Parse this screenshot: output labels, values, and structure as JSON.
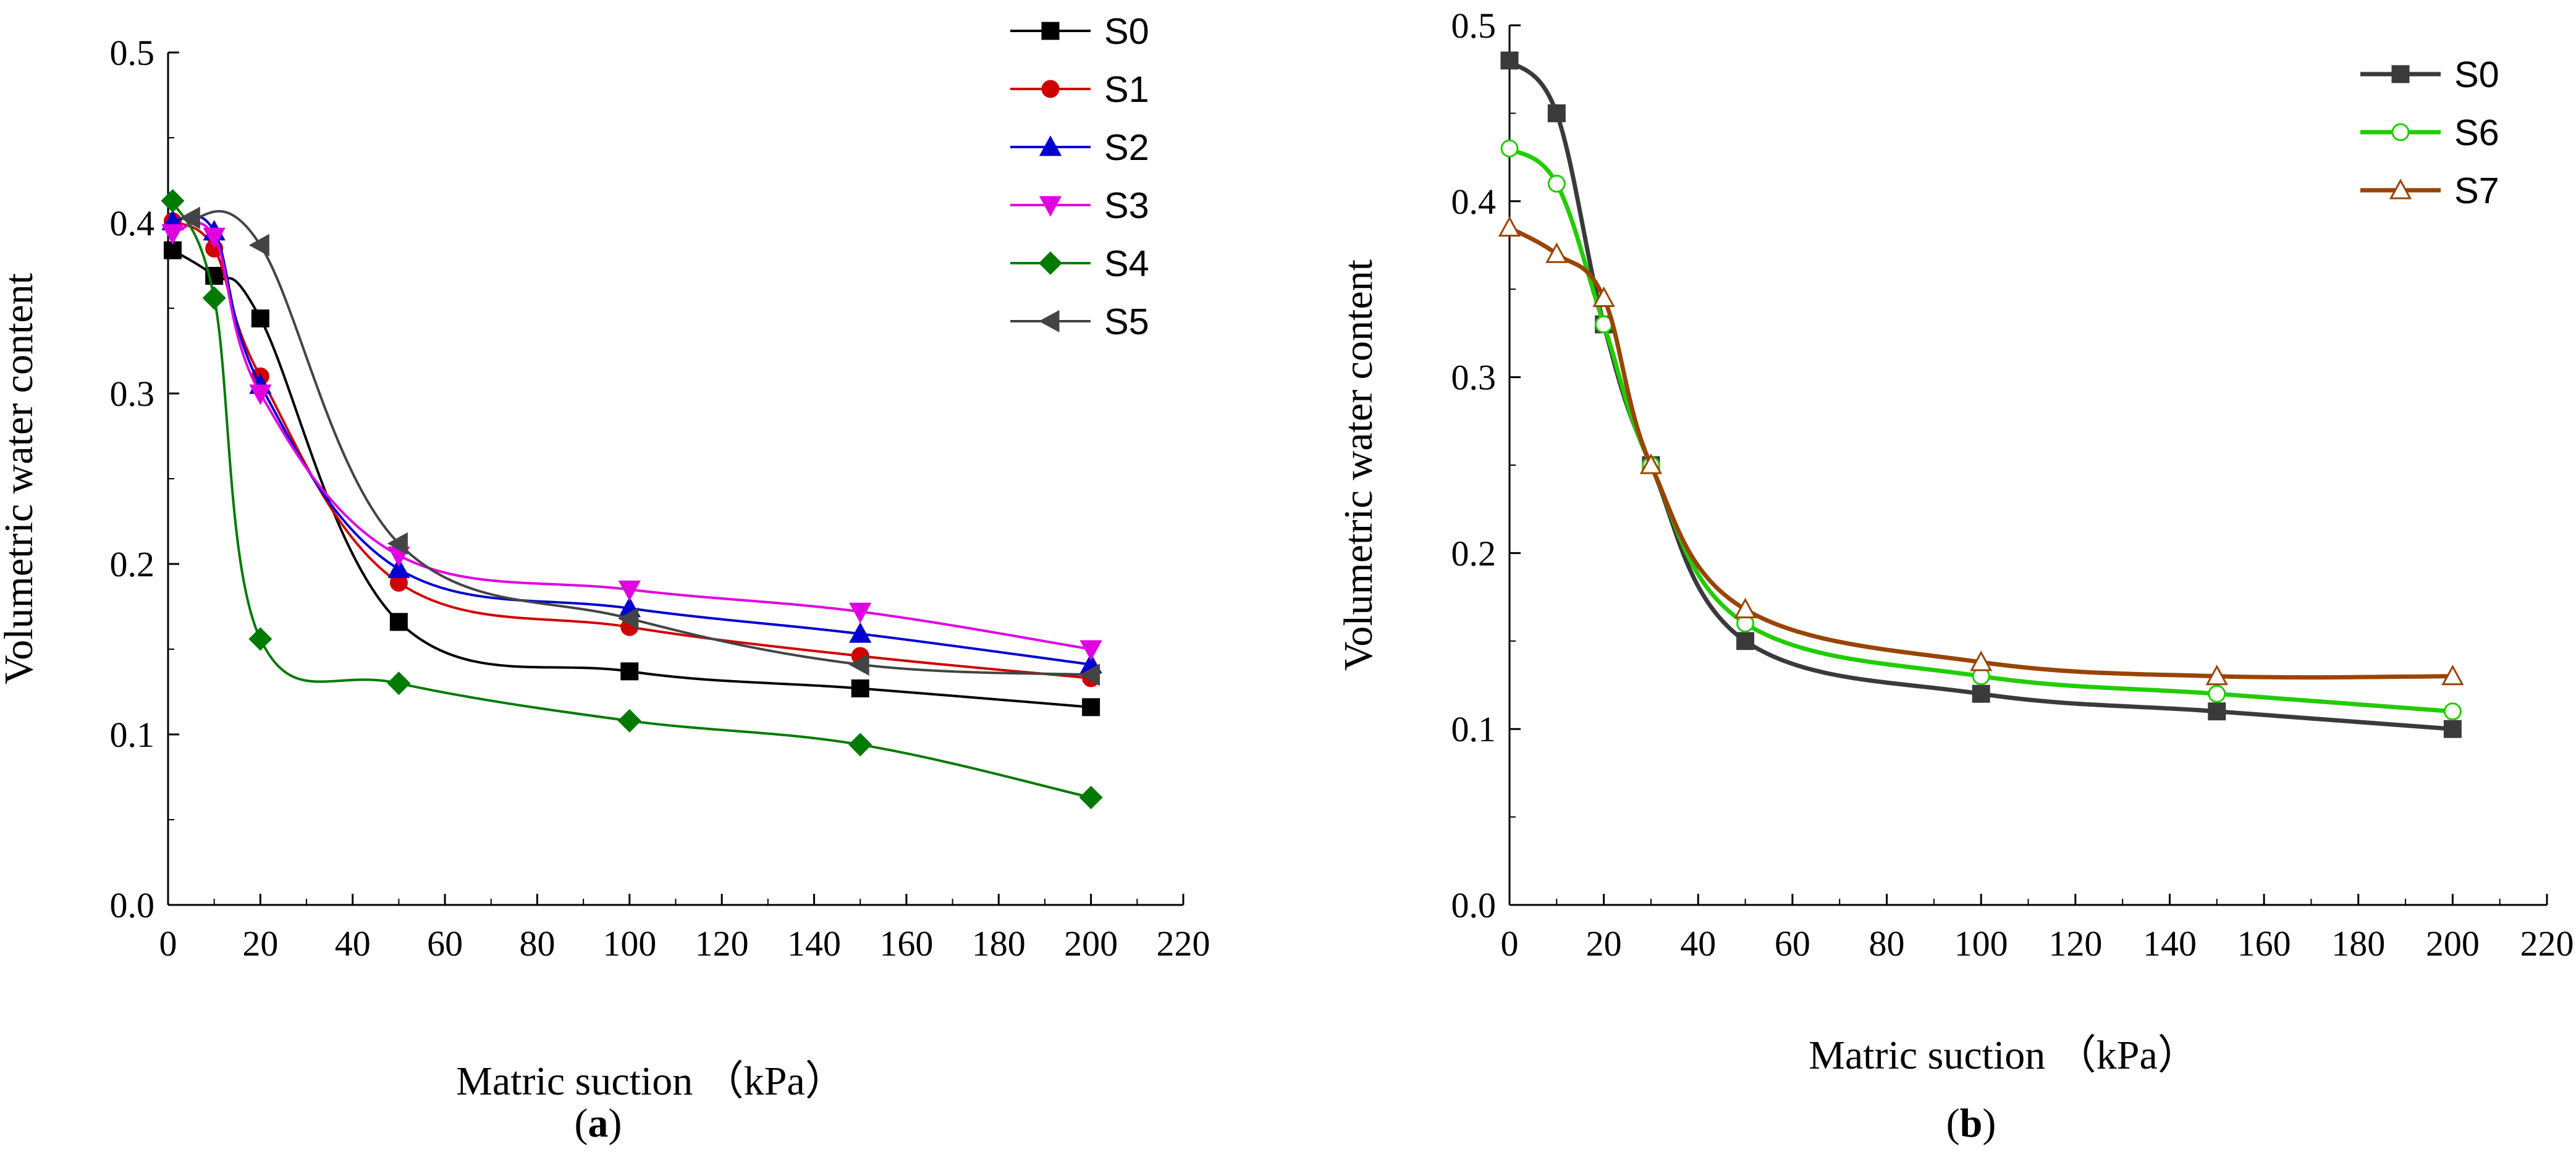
{
  "chart_data": [
    {
      "panel_label": "a",
      "type": "line",
      "xlabel": "Matric suction （kPa）",
      "ylabel": "Volumetric water content",
      "xlim": [
        0,
        220
      ],
      "ylim": [
        0,
        0.5
      ],
      "xticks": [
        "0",
        "20",
        "40",
        "60",
        "80",
        "100",
        "120",
        "140",
        "160",
        "180",
        "200",
        "220"
      ],
      "yticks": [
        "0.0",
        "0.1",
        "0.2",
        "0.3",
        "0.4",
        "0.5"
      ],
      "legend_position": "top-right",
      "series": [
        {
          "name": "S0",
          "color": "#000000",
          "marker": "square",
          "x": [
            1,
            10,
            20,
            50,
            100,
            150,
            200
          ],
          "y": [
            0.384,
            0.369,
            0.344,
            0.166,
            0.137,
            0.127,
            0.116
          ]
        },
        {
          "name": "S1",
          "color": "#d00000",
          "marker": "circle",
          "x": [
            1,
            10,
            20,
            50,
            100,
            150,
            200
          ],
          "y": [
            0.401,
            0.385,
            0.31,
            0.189,
            0.163,
            0.146,
            0.133
          ]
        },
        {
          "name": "S2",
          "color": "#0000d0",
          "marker": "triangle-up",
          "x": [
            1,
            10,
            20,
            50,
            100,
            150,
            200
          ],
          "y": [
            0.401,
            0.395,
            0.305,
            0.197,
            0.174,
            0.159,
            0.141
          ]
        },
        {
          "name": "S3",
          "color": "#e000e0",
          "marker": "triangle-down",
          "x": [
            1,
            10,
            20,
            50,
            100,
            150,
            200
          ],
          "y": [
            0.394,
            0.392,
            0.3,
            0.205,
            0.185,
            0.172,
            0.15
          ]
        },
        {
          "name": "S4",
          "color": "#007a00",
          "marker": "diamond",
          "x": [
            1,
            10,
            20,
            50,
            100,
            150,
            200
          ],
          "y": [
            0.413,
            0.356,
            0.156,
            0.13,
            0.108,
            0.094,
            0.063
          ]
        },
        {
          "name": "S5",
          "color": "#444444",
          "marker": "triangle-left",
          "x": [
            5,
            20,
            50,
            100,
            150,
            200
          ],
          "y": [
            0.403,
            0.387,
            0.212,
            0.168,
            0.141,
            0.135
          ]
        }
      ]
    },
    {
      "panel_label": "b",
      "type": "line",
      "xlabel": "Matric suction （kPa）",
      "ylabel": "Volumetric water content",
      "xlim": [
        0,
        220
      ],
      "ylim": [
        0,
        0.5
      ],
      "xticks": [
        "0",
        "20",
        "40",
        "60",
        "80",
        "100",
        "120",
        "140",
        "160",
        "180",
        "200",
        "220"
      ],
      "yticks": [
        "0.0",
        "0.1",
        "0.2",
        "0.3",
        "0.4",
        "0.5"
      ],
      "legend_position": "top-right",
      "series": [
        {
          "name": "S0",
          "color": "#3a3a3a",
          "marker": "square",
          "x": [
            0,
            10,
            20,
            30,
            50,
            100,
            150,
            200
          ],
          "y": [
            0.48,
            0.45,
            0.33,
            0.25,
            0.15,
            0.12,
            0.11,
            0.1
          ]
        },
        {
          "name": "S6",
          "color": "#22cc00",
          "marker": "circle-open",
          "x": [
            0,
            10,
            20,
            30,
            50,
            100,
            150,
            200
          ],
          "y": [
            0.43,
            0.41,
            0.33,
            0.25,
            0.16,
            0.13,
            0.12,
            0.11
          ]
        },
        {
          "name": "S7",
          "color": "#994400",
          "marker": "triangle-open",
          "x": [
            0,
            10,
            20,
            30,
            50,
            100,
            150,
            200
          ],
          "y": [
            0.385,
            0.37,
            0.345,
            0.25,
            0.168,
            0.138,
            0.13,
            0.13
          ]
        }
      ]
    }
  ]
}
